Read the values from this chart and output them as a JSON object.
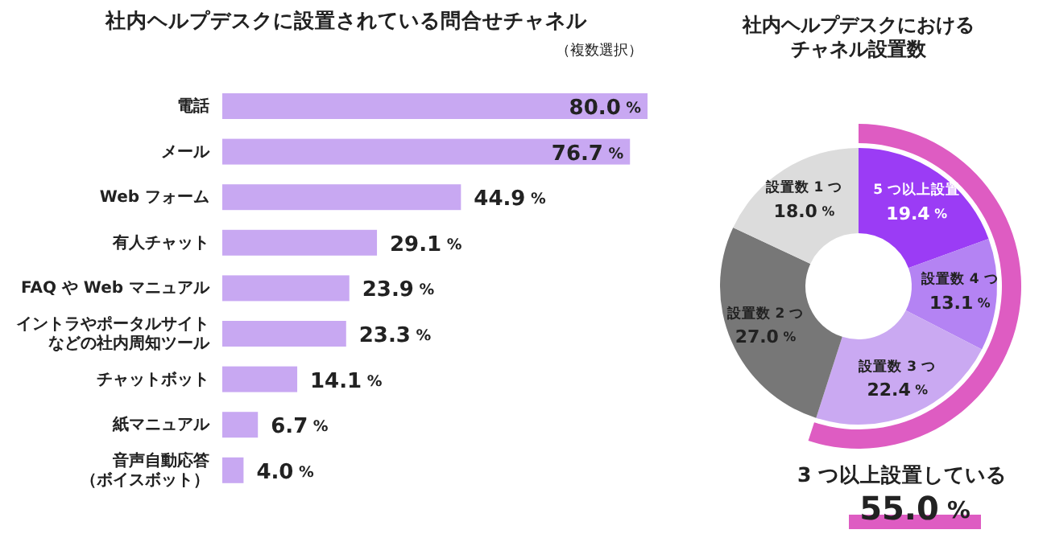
{
  "chart_data": [
    {
      "type": "bar",
      "orientation": "horizontal",
      "title": "社内ヘルプデスクに設置されている問合せチャネル",
      "subtitle": "（複数選択）",
      "categories": [
        "電話",
        "メール",
        "Web フォーム",
        "有人チャット",
        "FAQ や Web マニュアル",
        "イントラやポータルサイトなどの社内周知ツール",
        "チャットボット",
        "紙マニュアル",
        "音声自動応答（ボイスボット）"
      ],
      "values": [
        80.0,
        76.7,
        44.9,
        29.1,
        23.9,
        23.3,
        14.1,
        6.7,
        4.0
      ],
      "value_labels": [
        "80.0 %",
        "76.7 %",
        "44.9 %",
        "29.1 %",
        "23.9 %",
        "23.3 %",
        "14.1 %",
        "6.7 %",
        "4.0 %"
      ],
      "color": "#c8a8f2"
    },
    {
      "type": "donut",
      "title": "社内ヘルプデスクにおけるチャネル設置数",
      "categories": [
        "5 つ以上設置",
        "設置数 4 つ",
        "設置数 3 つ",
        "設置数 2 つ",
        "設置数 1 つ"
      ],
      "values": [
        19.4,
        13.1,
        22.4,
        27.0,
        18.0
      ],
      "value_labels": [
        "19.4 %",
        "13.1 %",
        "22.4 %",
        "27.0 %",
        "18.0 %"
      ],
      "colors": [
        "#9b3cf5",
        "#b483f3",
        "#caa9f2",
        "#777777",
        "#dcdcdc"
      ],
      "series": [
        {
          "name": "3 つ以上設置している",
          "colors": [
            "#de5cc2",
            null,
            null,
            null,
            null
          ],
          "values": [
            55.0,
            null,
            null,
            null,
            null
          ],
          "value_labels": [
            "55.0 %",
            null,
            null,
            null,
            null
          ]
        }
      ]
    }
  ]
}
